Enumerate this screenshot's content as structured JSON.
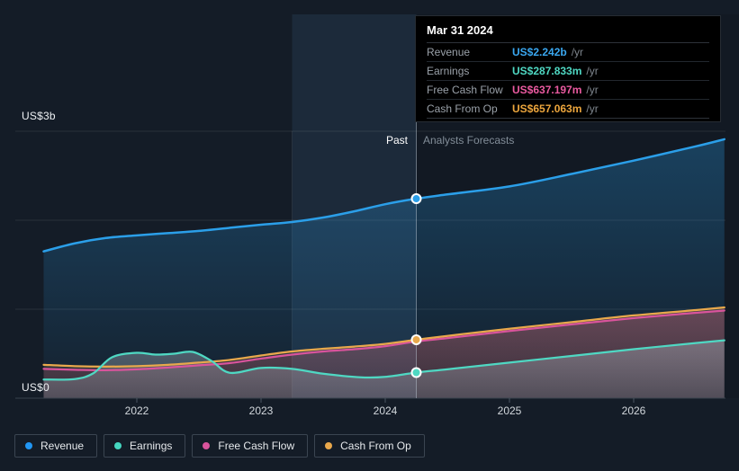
{
  "app_title": "Earnings and Revenue Growth chart",
  "colors": {
    "background": "#141c27",
    "revenue": "#2b9fe9",
    "earnings": "#4fd8c3",
    "free_cash_flow": "#d9549c",
    "cash_from_op": "#e9a84c",
    "divider": "#b9c6d2",
    "axis": "#39424e",
    "grid": "#2a333f"
  },
  "y_axis": {
    "top_label": "US$3b",
    "bottom_label": "US$0"
  },
  "x_axis": {
    "ticks": [
      "2022",
      "2023",
      "2024",
      "2025",
      "2026"
    ]
  },
  "divider": {
    "past_label": "Past",
    "forecast_label": "Analysts Forecasts"
  },
  "tooltip": {
    "title": "Mar 31 2024",
    "rows": [
      {
        "key": "revenue",
        "label": "Revenue",
        "value": "US$2.242b",
        "suffix": "/yr",
        "color": "#3aa7f0"
      },
      {
        "key": "earnings",
        "label": "Earnings",
        "value": "US$287.833m",
        "suffix": "/yr",
        "color": "#4fd8c3"
      },
      {
        "key": "free-cash-flow",
        "label": "Free Cash Flow",
        "value": "US$637.197m",
        "suffix": "/yr",
        "color": "#ea5aa0"
      },
      {
        "key": "cash-from-op",
        "label": "Cash From Op",
        "value": "US$657.063m",
        "suffix": "/yr",
        "color": "#eda63d"
      }
    ]
  },
  "legend": [
    {
      "key": "revenue",
      "label": "Revenue",
      "color": "#2196f3"
    },
    {
      "key": "earnings",
      "label": "Earnings",
      "color": "#45d6c0"
    },
    {
      "key": "free-cash-flow",
      "label": "Free Cash Flow",
      "color": "#d9549c"
    },
    {
      "key": "cash-from-op",
      "label": "Cash From Op",
      "color": "#e9a84c"
    }
  ],
  "chart_data": {
    "type": "area",
    "title": "Past and forecast Revenue, Earnings, Free Cash Flow and Cash From Op",
    "x_unit": "year (decimal)",
    "xlim": [
      2021.25,
      2026.73
    ],
    "ylim": [
      0,
      3
    ],
    "y_unit": "US$ billions",
    "gridlines_b": [
      0,
      1,
      2,
      3
    ],
    "grid": "horizontal-only",
    "legend_position": "bottom-left",
    "past_until": 2024.25,
    "highlight_band": [
      2023.25,
      2024.25
    ],
    "marker_x": 2024.25,
    "series": [
      {
        "key": "revenue",
        "name": "Revenue",
        "color": "#2b9fe9",
        "marker": true,
        "x": [
          2021.25,
          2021.5,
          2021.75,
          2022.0,
          2022.25,
          2022.5,
          2022.75,
          2023.0,
          2023.25,
          2023.5,
          2023.75,
          2024.0,
          2024.25,
          2024.5,
          2025.0,
          2025.5,
          2026.0,
          2026.5,
          2026.73
        ],
        "y": [
          1.65,
          1.74,
          1.8,
          1.83,
          1.855,
          1.88,
          1.915,
          1.95,
          1.98,
          2.03,
          2.1,
          2.18,
          2.242,
          2.29,
          2.38,
          2.52,
          2.67,
          2.83,
          2.91
        ]
      },
      {
        "key": "cash-from-op",
        "name": "Cash From Op",
        "color": "#e9a84c",
        "marker": true,
        "x": [
          2021.25,
          2021.5,
          2021.75,
          2022.0,
          2022.25,
          2022.5,
          2022.75,
          2023.0,
          2023.25,
          2023.5,
          2023.75,
          2024.0,
          2024.25,
          2024.5,
          2025.0,
          2025.5,
          2026.0,
          2026.5,
          2026.73
        ],
        "y": [
          0.375,
          0.36,
          0.355,
          0.36,
          0.375,
          0.4,
          0.43,
          0.48,
          0.525,
          0.555,
          0.58,
          0.61,
          0.657,
          0.7,
          0.78,
          0.855,
          0.93,
          0.99,
          1.02
        ]
      },
      {
        "key": "free-cash-flow",
        "name": "Free Cash Flow",
        "color": "#d9549c",
        "marker": false,
        "x": [
          2021.25,
          2021.5,
          2021.75,
          2022.0,
          2022.25,
          2022.5,
          2022.75,
          2023.0,
          2023.25,
          2023.5,
          2023.75,
          2024.0,
          2024.25,
          2024.5,
          2025.0,
          2025.5,
          2026.0,
          2026.5,
          2026.73
        ],
        "y": [
          0.33,
          0.32,
          0.315,
          0.325,
          0.345,
          0.37,
          0.395,
          0.445,
          0.49,
          0.525,
          0.55,
          0.585,
          0.637,
          0.675,
          0.755,
          0.83,
          0.9,
          0.96,
          0.985
        ]
      },
      {
        "key": "earnings",
        "name": "Earnings",
        "color": "#4fd8c3",
        "marker": true,
        "x": [
          2021.25,
          2021.5,
          2021.65,
          2021.8,
          2022.0,
          2022.15,
          2022.3,
          2022.45,
          2022.6,
          2022.75,
          2023.0,
          2023.25,
          2023.5,
          2023.8,
          2024.0,
          2024.25,
          2024.5,
          2025.0,
          2025.5,
          2026.0,
          2026.5,
          2026.73
        ],
        "y": [
          0.21,
          0.215,
          0.28,
          0.46,
          0.51,
          0.49,
          0.5,
          0.52,
          0.42,
          0.285,
          0.34,
          0.33,
          0.275,
          0.235,
          0.24,
          0.288,
          0.325,
          0.4,
          0.475,
          0.55,
          0.62,
          0.65
        ]
      }
    ]
  }
}
